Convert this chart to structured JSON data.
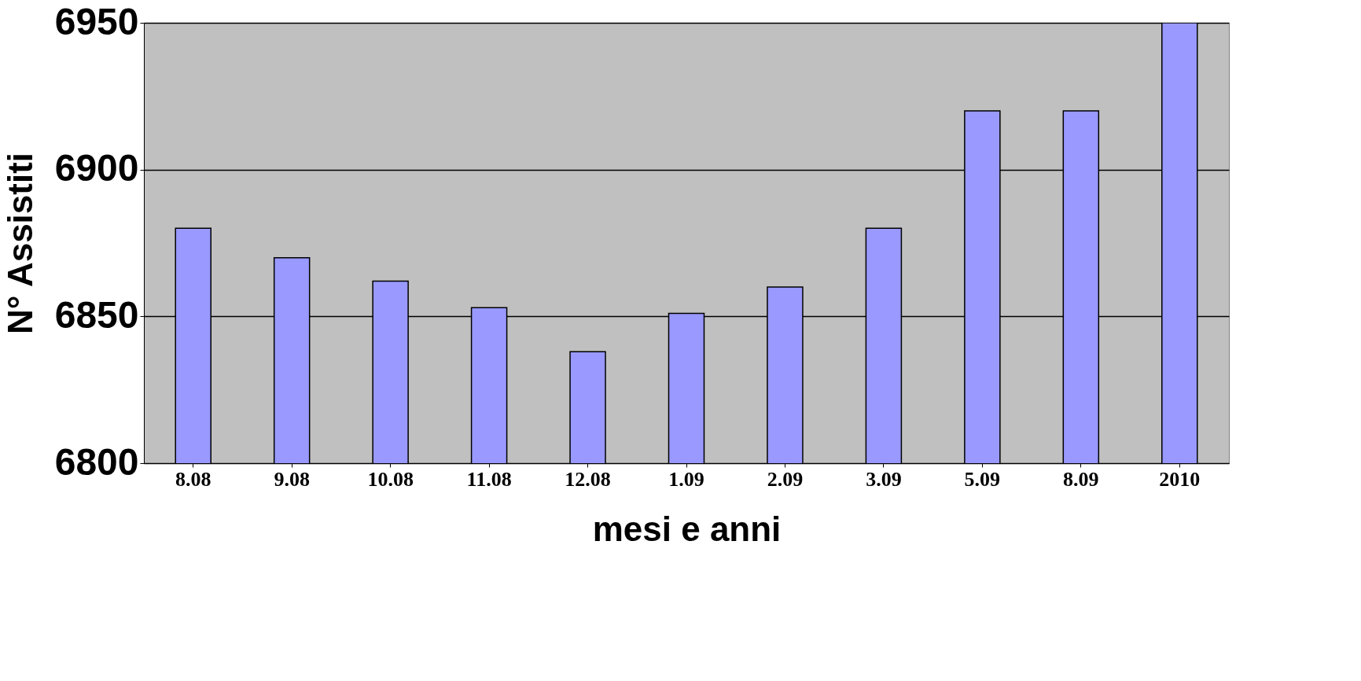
{
  "chart_data": {
    "type": "bar",
    "xlabel": "mesi e anni",
    "ylabel": "N° Assistiti",
    "categories": [
      "8.08",
      "9.08",
      "10.08",
      "11.08",
      "12.08",
      "1.09",
      "2.09",
      "3.09",
      "5.09",
      "8.09",
      "2010"
    ],
    "values": [
      6880,
      6870,
      6862,
      6853,
      6838,
      6851,
      6860,
      6880,
      6920,
      6920,
      6950
    ],
    "color": "#9999ff",
    "ylim": [
      6800,
      6950
    ],
    "yticks": [
      6800,
      6850,
      6900,
      6950
    ],
    "grid": "y"
  }
}
